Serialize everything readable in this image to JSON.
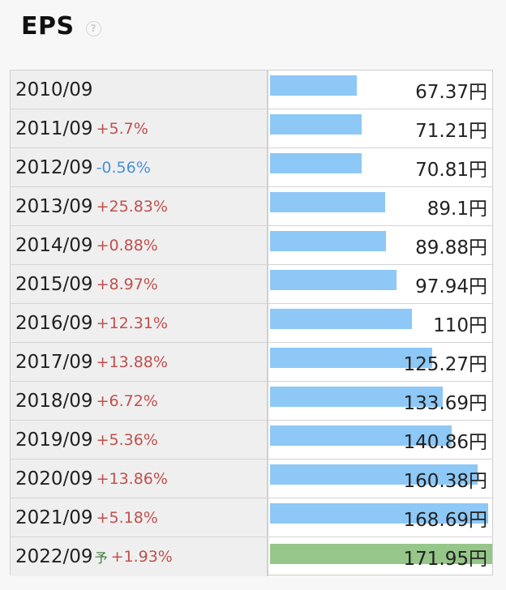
{
  "header": {
    "title": "EPS",
    "help_icon": "?"
  },
  "colors": {
    "actual_bar": "#8dc8f6",
    "forecast_bar": "#96c68a",
    "positive_change": "#c0504d",
    "negative_change": "#4a90d9"
  },
  "chart_data": {
    "type": "bar",
    "orientation": "horizontal",
    "unit": "円",
    "categories": [
      "2010/09",
      "2011/09",
      "2012/09",
      "2013/09",
      "2014/09",
      "2015/09",
      "2016/09",
      "2017/09",
      "2018/09",
      "2019/09",
      "2020/09",
      "2021/09",
      "2022/09"
    ],
    "values": [
      67.37,
      71.21,
      70.81,
      89.1,
      89.88,
      97.94,
      110,
      125.27,
      133.69,
      140.86,
      160.38,
      168.69,
      171.95
    ],
    "xlim": [
      0,
      171.95
    ],
    "rows": [
      {
        "year": "2010/09",
        "change": "",
        "forecast_mark": "",
        "value": 67.37,
        "value_text": "67.37円",
        "forecast": false
      },
      {
        "year": "2011/09",
        "change": "+5.7%",
        "forecast_mark": "",
        "value": 71.21,
        "value_text": "71.21円",
        "forecast": false
      },
      {
        "year": "2012/09",
        "change": "-0.56%",
        "forecast_mark": "",
        "value": 70.81,
        "value_text": "70.81円",
        "forecast": false
      },
      {
        "year": "2013/09",
        "change": "+25.83%",
        "forecast_mark": "",
        "value": 89.1,
        "value_text": "89.1円",
        "forecast": false
      },
      {
        "year": "2014/09",
        "change": "+0.88%",
        "forecast_mark": "",
        "value": 89.88,
        "value_text": "89.88円",
        "forecast": false
      },
      {
        "year": "2015/09",
        "change": "+8.97%",
        "forecast_mark": "",
        "value": 97.94,
        "value_text": "97.94円",
        "forecast": false
      },
      {
        "year": "2016/09",
        "change": "+12.31%",
        "forecast_mark": "",
        "value": 110,
        "value_text": "110円",
        "forecast": false
      },
      {
        "year": "2017/09",
        "change": "+13.88%",
        "forecast_mark": "",
        "value": 125.27,
        "value_text": "125.27円",
        "forecast": false
      },
      {
        "year": "2018/09",
        "change": "+6.72%",
        "forecast_mark": "",
        "value": 133.69,
        "value_text": "133.69円",
        "forecast": false
      },
      {
        "year": "2019/09",
        "change": "+5.36%",
        "forecast_mark": "",
        "value": 140.86,
        "value_text": "140.86円",
        "forecast": false
      },
      {
        "year": "2020/09",
        "change": "+13.86%",
        "forecast_mark": "",
        "value": 160.38,
        "value_text": "160.38円",
        "forecast": false
      },
      {
        "year": "2021/09",
        "change": "+5.18%",
        "forecast_mark": "",
        "value": 168.69,
        "value_text": "168.69円",
        "forecast": false
      },
      {
        "year": "2022/09",
        "change": "+1.93%",
        "forecast_mark": "予",
        "value": 171.95,
        "value_text": "171.95円",
        "forecast": true
      }
    ]
  }
}
